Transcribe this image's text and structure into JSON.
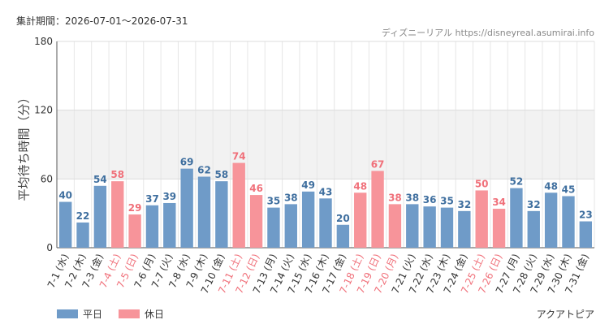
{
  "header": {
    "period_text": "集計期間：2026-07-01〜2026-07-31",
    "credit_text": "ディズニーリアル https://disneyreal.asumirai.info"
  },
  "legend": {
    "weekday_label": "平日",
    "holiday_label": "休日"
  },
  "park_name": "アクアトピア",
  "colors": {
    "weekday": "#6f9bc8",
    "holiday": "#f7949a",
    "weekday_text": "#3f6f9f",
    "holiday_text": "#f0707a",
    "band": "#f2f2f2"
  },
  "chart_data": {
    "type": "bar",
    "ylabel": "平均待ち時間（分）",
    "xlabel": "",
    "ylim": [
      0,
      180
    ],
    "yticks": [
      0,
      60,
      120,
      180
    ],
    "grid": true,
    "legend_position": "bottom-left",
    "categories": [
      "7-1 (水)",
      "7-2 (木)",
      "7-3 (金)",
      "7-4 (土)",
      "7-5 (日)",
      "7-6 (月)",
      "7-7 (火)",
      "7-8 (水)",
      "7-9 (木)",
      "7-10 (金)",
      "7-11 (土)",
      "7-12 (日)",
      "7-13 (月)",
      "7-14 (火)",
      "7-15 (水)",
      "7-16 (木)",
      "7-17 (金)",
      "7-18 (土)",
      "7-19 (日)",
      "7-20 (月)",
      "7-21 (火)",
      "7-22 (水)",
      "7-23 (木)",
      "7-24 (金)",
      "7-25 (土)",
      "7-26 (日)",
      "7-27 (月)",
      "7-28 (火)",
      "7-29 (水)",
      "7-30 (木)",
      "7-31 (金)"
    ],
    "values": [
      40,
      22,
      54,
      58,
      29,
      37,
      39,
      69,
      62,
      58,
      74,
      46,
      35,
      38,
      49,
      43,
      20,
      48,
      67,
      38,
      38,
      36,
      35,
      32,
      50,
      34,
      52,
      32,
      48,
      45,
      23
    ],
    "day_types": [
      "平日",
      "平日",
      "平日",
      "休日",
      "休日",
      "平日",
      "平日",
      "平日",
      "平日",
      "平日",
      "休日",
      "休日",
      "平日",
      "平日",
      "平日",
      "平日",
      "平日",
      "休日",
      "休日",
      "休日",
      "平日",
      "平日",
      "平日",
      "平日",
      "休日",
      "休日",
      "平日",
      "平日",
      "平日",
      "平日",
      "平日"
    ]
  }
}
